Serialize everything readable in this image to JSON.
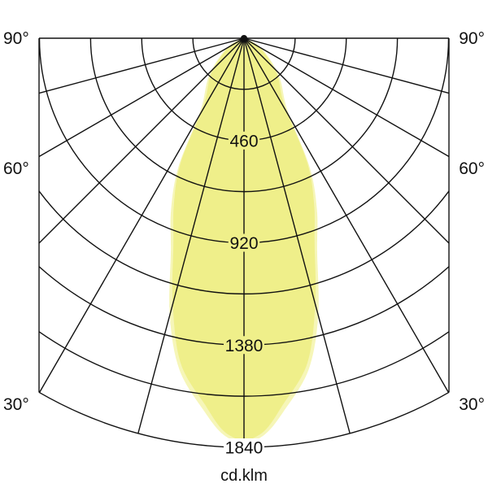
{
  "chart_data": {
    "type": "polar",
    "unit_label": "cd.klm",
    "radial_range": [
      0,
      1840
    ],
    "radial_grid_step": 230,
    "radial_tick_labels": [
      "460",
      "920",
      "1380",
      "1840"
    ],
    "radial_tick_values": [
      460,
      920,
      1380,
      1840
    ],
    "angle_rays_deg": [
      0,
      15,
      30,
      45,
      60,
      75,
      90
    ],
    "angle_labels": [
      {
        "text": "90°",
        "angle": 90
      },
      {
        "text": "60°",
        "angle": 60
      },
      {
        "text": "30°",
        "angle": 30
      }
    ],
    "grid": true,
    "series": [
      {
        "color": "#f6f6b8",
        "points": [
          [
            0,
            1830
          ],
          [
            3,
            1785
          ],
          [
            6,
            1690
          ],
          [
            11,
            1520
          ],
          [
            15,
            1290
          ],
          [
            19,
            1010
          ],
          [
            23,
            840
          ],
          [
            27,
            650
          ],
          [
            31,
            380
          ],
          [
            43,
            230
          ],
          [
            60,
            90
          ],
          [
            90,
            0
          ]
        ]
      },
      {
        "color": "#efef8a",
        "points": [
          [
            0,
            1818
          ],
          [
            3,
            1768
          ],
          [
            6,
            1660
          ],
          [
            11,
            1490
          ],
          [
            15,
            1238
          ],
          [
            19,
            975
          ],
          [
            23,
            806
          ],
          [
            27,
            625
          ],
          [
            31,
            354
          ],
          [
            43,
            215
          ],
          [
            60,
            80
          ],
          [
            90,
            0
          ]
        ]
      }
    ]
  }
}
